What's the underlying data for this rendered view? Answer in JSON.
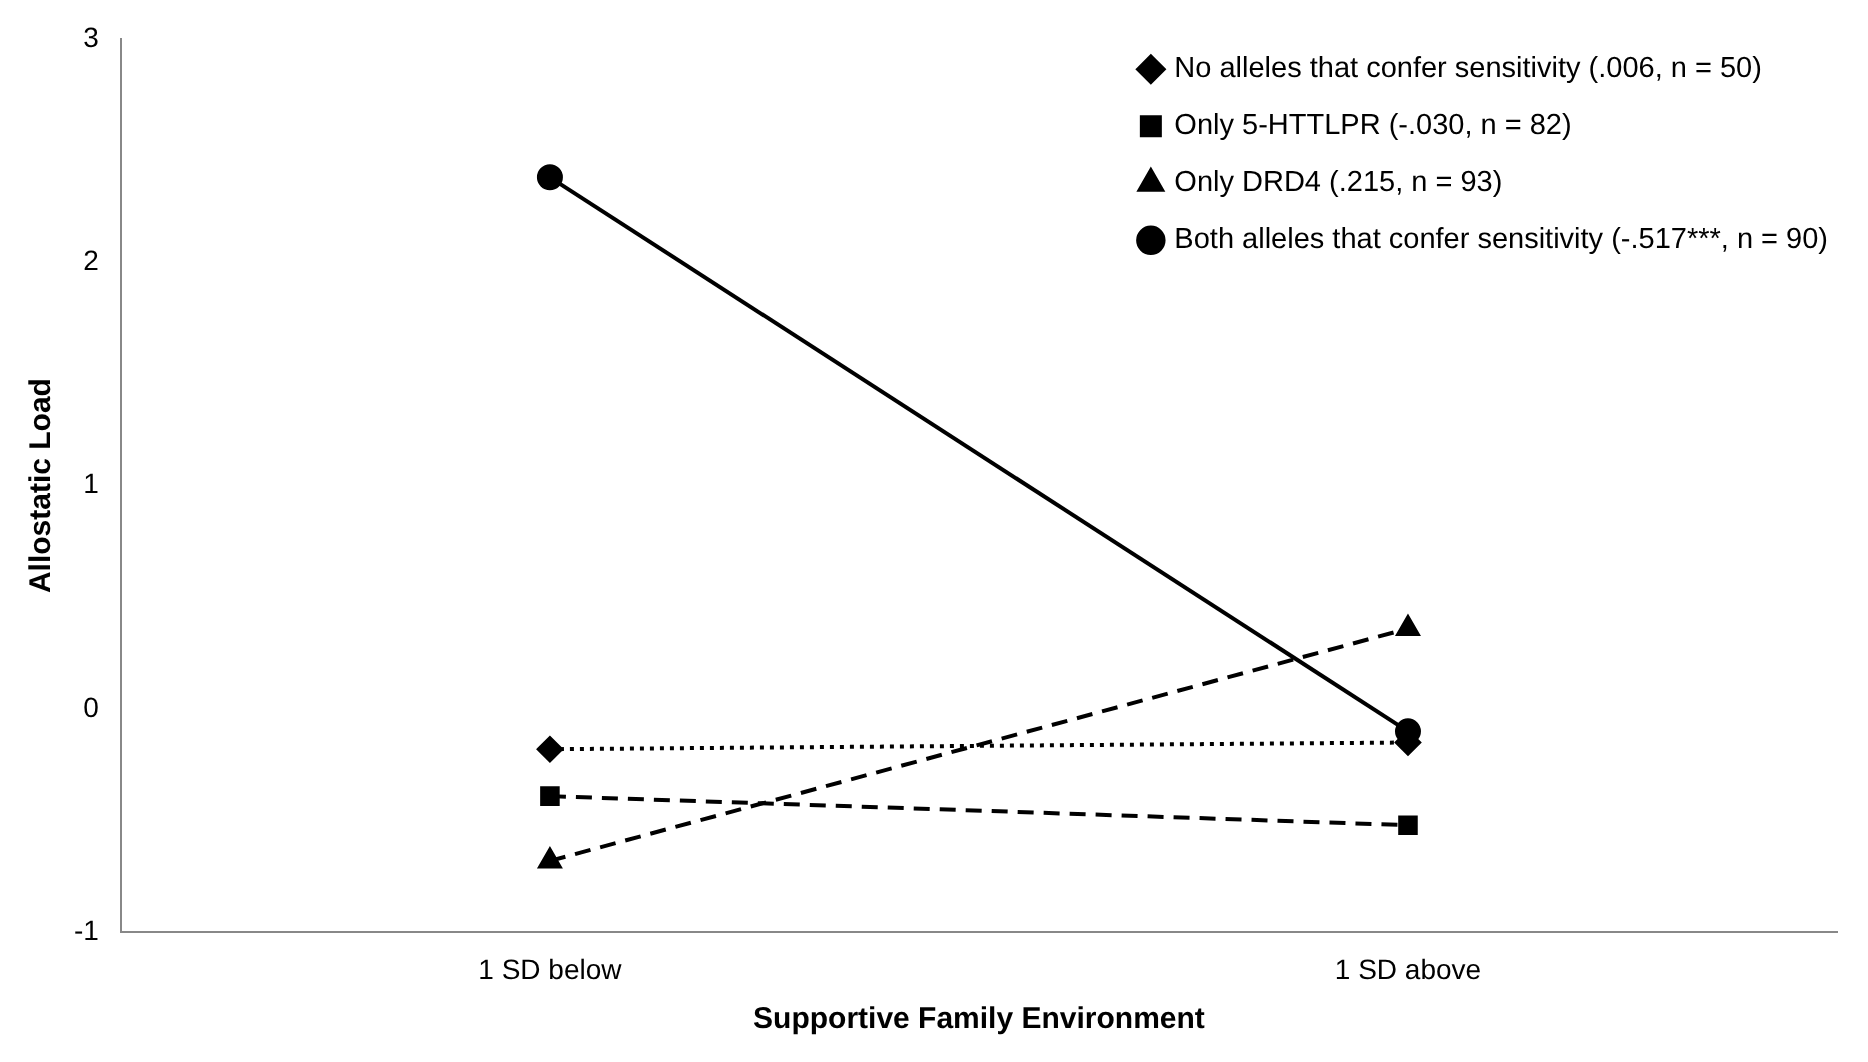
{
  "chart_data": {
    "type": "line",
    "xlabel": "Supportive Family Environment",
    "ylabel": "Allostatic Load",
    "categories": [
      "1 SD below",
      "1 SD above"
    ],
    "series": [
      {
        "name": "No alleles that confer sensitivity (.006, n = 50)",
        "color": "#000000",
        "values": [
          -0.18,
          -0.15
        ],
        "marker": "diamond",
        "line_style": "dotted"
      },
      {
        "name": "Only 5-HTTLPR (-.030, n = 82)",
        "color": "#000000",
        "values": [
          -0.39,
          -0.52
        ],
        "marker": "square",
        "line_style": "dashed"
      },
      {
        "name": "Only DRD4 (.215, n = 93)",
        "color": "#000000",
        "values": [
          -0.68,
          0.36
        ],
        "marker": "triangle",
        "line_style": "dashed"
      },
      {
        "name": "Both alleles that confer sensitivity (-.517***, n = 90)",
        "color": "#000000",
        "values": [
          2.38,
          -0.1
        ],
        "marker": "circle",
        "line_style": "solid"
      }
    ],
    "ylim": [
      -1,
      3
    ],
    "yticks": [
      -1,
      0,
      1,
      2,
      3
    ],
    "grid": false,
    "legend": "top right"
  }
}
